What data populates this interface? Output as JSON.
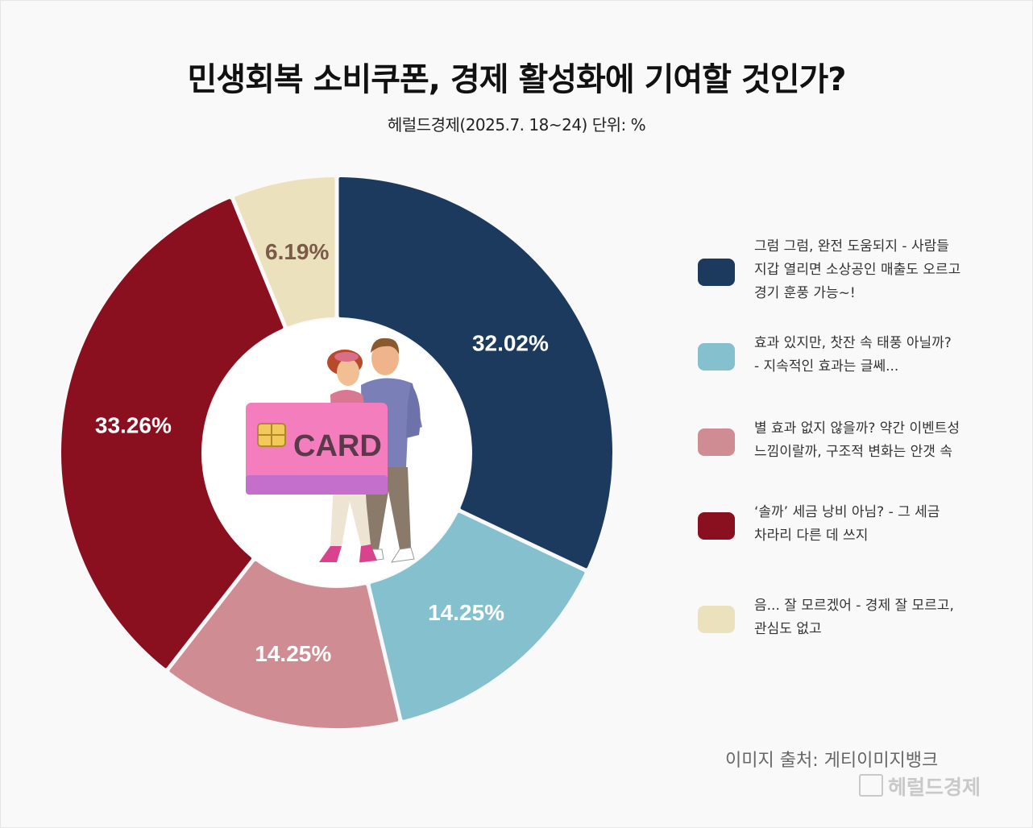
{
  "title": "민생회복 소비쿠폰, 경제 활성화에 기여할 것인가?",
  "subtitle": "헤럴드경제(2025.7. 18~24) 단위: %",
  "chart_data": {
    "type": "pie",
    "donut": true,
    "categories": [
      "그럼 그럼, 완전 도움되지 - 사람들 지갑 열리면 소상공인 매출도 오르고 경기 훈풍 가능~!",
      "효과 있지만, 찻잔 속 태풍 아닐까? - 지속적인 효과는 글쎄...",
      "별 효과 없지 않을까? 약간 이벤트성 느낌이랄까, 구조적 변화는 안갯 속",
      "‘솔까’ 세금 낭비 아님? - 그 세금 차라리 다른 데 쓰지",
      "음... 잘 모르겠어 - 경제 잘 모르고, 관심도 없고"
    ],
    "values": [
      32.02,
      14.25,
      14.25,
      33.26,
      6.19
    ],
    "labels": [
      "32.02%",
      "14.25%",
      "14.25%",
      "33.26%",
      "6.19%"
    ],
    "colors": [
      "#1c3a5e",
      "#85c0cf",
      "#cf8c93",
      "#8a101f",
      "#ece1bd"
    ],
    "label_colors": [
      "#ffffff",
      "#ffffff",
      "#ffffff",
      "#ffffff",
      "#7a5a48"
    ],
    "legend": [
      {
        "lines": [
          "그럼 그럼, 완전 도움되지 - 사람들",
          "지갑 열리면 소상공인 매출도 오르고",
          "경기 훈풍 가능~!"
        ]
      },
      {
        "lines": [
          "효과 있지만, 찻잔 속 태풍 아닐까?",
          "- 지속적인 효과는 글쎄..."
        ]
      },
      {
        "lines": [
          "별 효과 없지 않을까? 약간 이벤트성",
          "느낌이랄까, 구조적 변화는 안갯 속"
        ]
      },
      {
        "lines": [
          "‘솔까’ 세금 낭비 아님? - 그 세금",
          "차라리 다른 데 쓰지"
        ]
      },
      {
        "lines": [
          "음... 잘 모르겠어 - 경제 잘 모르고,",
          "관심도 없고"
        ]
      }
    ],
    "legend_placement": "right"
  },
  "illustration": {
    "card_text": "CARD"
  },
  "source": "이미지 출처: 게티이미지뱅크",
  "watermark": "헤럴드경제"
}
